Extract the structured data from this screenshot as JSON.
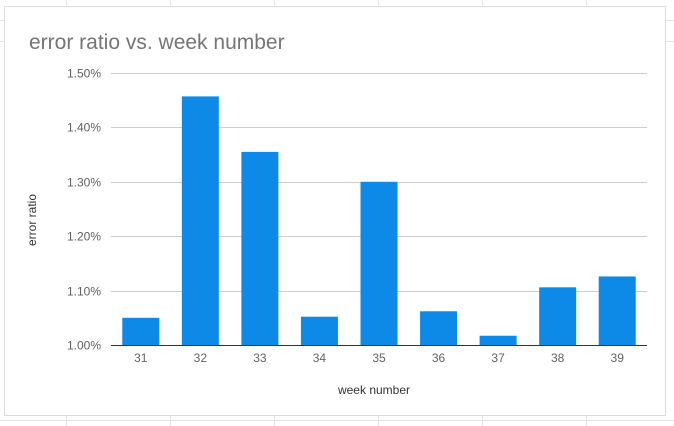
{
  "chart_data": {
    "type": "bar",
    "title": "error ratio vs. week number",
    "xlabel": "week number",
    "ylabel": "error ratio",
    "categories": [
      "31",
      "32",
      "33",
      "34",
      "35",
      "36",
      "37",
      "38",
      "39"
    ],
    "values": [
      1.05,
      1.457,
      1.355,
      1.052,
      1.3,
      1.062,
      1.017,
      1.106,
      1.126
    ],
    "ylim": [
      1.0,
      1.5
    ],
    "yticks": [
      1.0,
      1.1,
      1.2,
      1.3,
      1.4,
      1.5
    ],
    "ytick_labels": [
      "1.00%",
      "1.10%",
      "1.20%",
      "1.30%",
      "1.40%",
      "1.50%"
    ],
    "grid": true,
    "legend": "none",
    "colors": {
      "bar": "#0d8ae8",
      "grid": "#cccccc",
      "axis": "#333333",
      "tick_text": "#616161",
      "title": "#757575"
    }
  }
}
